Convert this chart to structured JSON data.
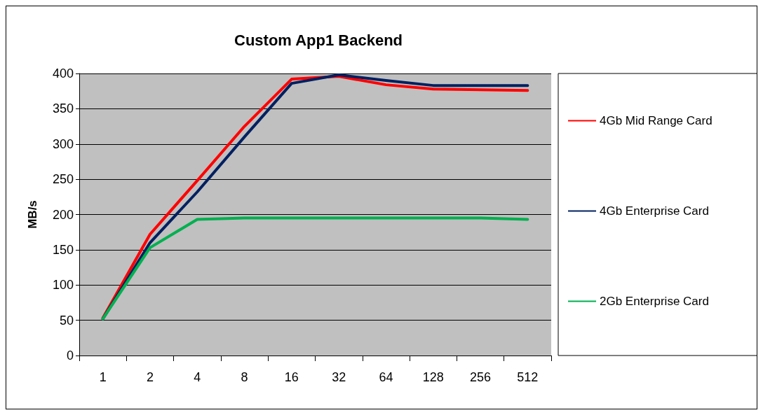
{
  "chart_data": {
    "type": "line",
    "title": "Custom App1 Backend",
    "ylabel": "MB/s",
    "categories": [
      "1",
      "2",
      "4",
      "8",
      "16",
      "32",
      "64",
      "128",
      "256",
      "512"
    ],
    "series": [
      {
        "name": "4Gb Mid Range Card",
        "color": "#ff0000",
        "values": [
          53,
          172,
          248,
          325,
          392,
          396,
          384,
          378,
          377,
          376
        ]
      },
      {
        "name": "4Gb Enterprise Card",
        "color": "#002060",
        "values": [
          52,
          160,
          232,
          310,
          386,
          398,
          390,
          383,
          383,
          383
        ]
      },
      {
        "name": "2Gb Enterprise Card",
        "color": "#00b050",
        "values": [
          52,
          153,
          193,
          195,
          195,
          195,
          195,
          195,
          195,
          193
        ]
      }
    ],
    "ylim": [
      0,
      400
    ],
    "yticks": [
      0,
      50,
      100,
      150,
      200,
      250,
      300,
      350,
      400
    ],
    "grid": "y",
    "legend": "right",
    "marker": "none",
    "line_style": "solid"
  }
}
